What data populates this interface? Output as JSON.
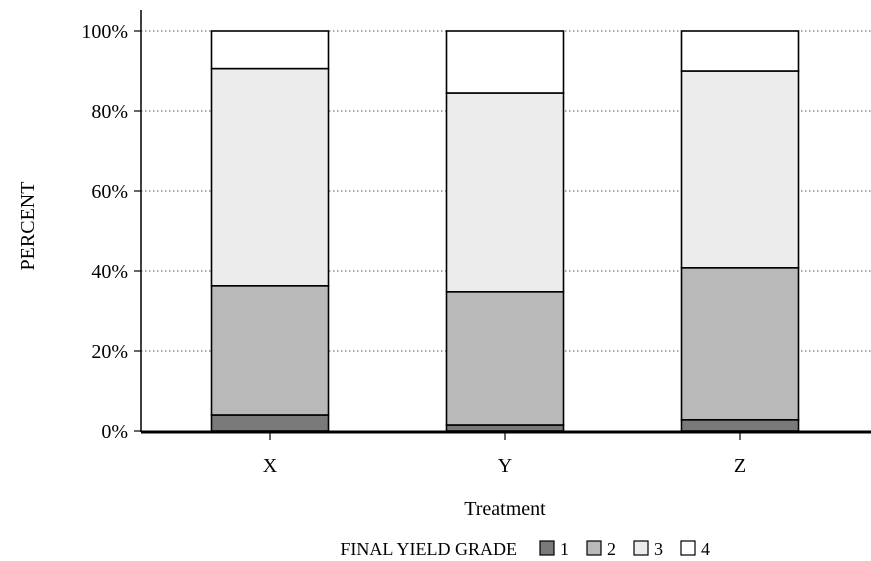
{
  "chart_data": {
    "type": "bar",
    "stacked": true,
    "categories": [
      "X",
      "Y",
      "Z"
    ],
    "series": [
      {
        "name": "1",
        "values": [
          4,
          1.5,
          2.8
        ],
        "color": "#7a7a7a"
      },
      {
        "name": "2",
        "values": [
          32.3,
          33.3,
          38.0
        ],
        "color": "#b9b9b9"
      },
      {
        "name": "3",
        "values": [
          54.3,
          49.7,
          49.2
        ],
        "color": "#ececec"
      },
      {
        "name": "4",
        "values": [
          9.4,
          15.5,
          10.0
        ],
        "color": "#ffffff"
      }
    ],
    "xlabel": "Treatment",
    "ylabel": "PERCENT",
    "ylim": [
      0,
      100
    ],
    "yticks": [
      "0%",
      "20%",
      "40%",
      "60%",
      "80%",
      "100%"
    ],
    "grid": "horizontal dotted",
    "legend": {
      "title": "FINAL YIELD GRADE",
      "placement": "bottom"
    }
  }
}
